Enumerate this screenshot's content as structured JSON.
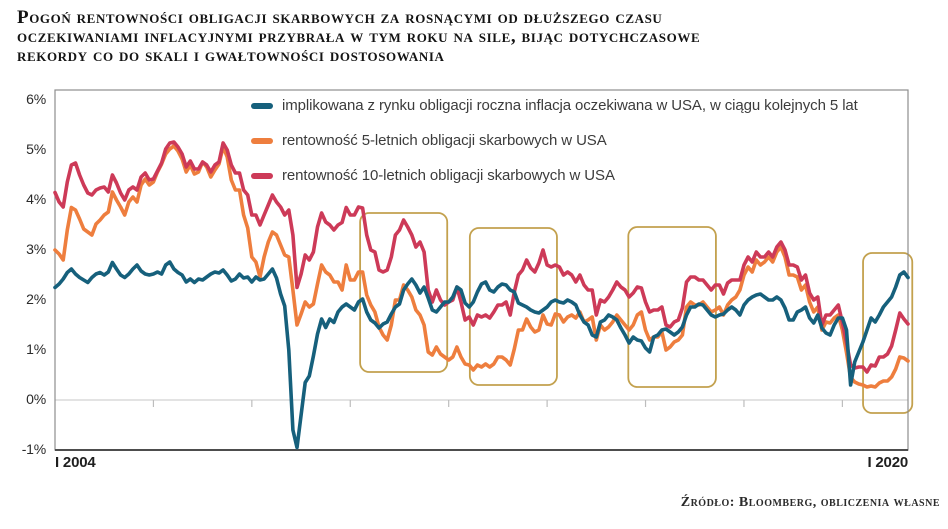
{
  "title_lines": [
    "Pogoń rentowności obligacji skarbowych za rosnącymi od dłuższego czasu",
    "oczekiwaniami inflacyjnymi przybrała w tym roku na sile, bijąc dotychczasowe",
    "rekordy co do skali i gwałtowności dostosowania"
  ],
  "source": "Źródło: Bloomberg, obliczenia własne",
  "chart_data": {
    "type": "line",
    "x_unit": "monthly",
    "x_start": "2004-01",
    "x_end": "2021-05",
    "ylim": [
      -1,
      6.2
    ],
    "grid": "zero-line-only",
    "legend_position": "top-inside",
    "yticks": [
      {
        "label": "6%",
        "value": 6
      },
      {
        "label": "5%",
        "value": 5
      },
      {
        "label": "4%",
        "value": 4
      },
      {
        "label": "3%",
        "value": 3
      },
      {
        "label": "2%",
        "value": 2
      },
      {
        "label": "1%",
        "value": 1
      },
      {
        "label": "0%",
        "value": 0
      },
      {
        "label": "-1%",
        "value": -1
      }
    ],
    "xtick_labels": [
      "I 2004",
      "I 2020"
    ],
    "xtick_minor_years": [
      2006,
      2008,
      2010,
      2012,
      2014,
      2016,
      2018,
      2020
    ],
    "highlight_color": "#c3a14e",
    "highlight_boxes": [
      {
        "x_from": 2010.2,
        "x_to": 2011.97,
        "y_top": 3.74,
        "y_bottom": 0.56
      },
      {
        "x_from": 2012.43,
        "x_to": 2014.2,
        "y_top": 3.44,
        "y_bottom": 0.3
      },
      {
        "x_from": 2015.65,
        "x_to": 2017.43,
        "y_top": 3.46,
        "y_bottom": 0.26
      },
      {
        "x_from": 2020.42,
        "x_to": 2021.42,
        "y_top": 2.94,
        "y_bottom": -0.26
      }
    ],
    "series": [
      {
        "name": "implikowana z rynku obligacji roczna inflacja oczekiwana w USA, w ciągu kolejnych 5 lat",
        "color": "#16607c",
        "values": [
          2.25,
          2.32,
          2.42,
          2.55,
          2.62,
          2.52,
          2.45,
          2.4,
          2.35,
          2.45,
          2.52,
          2.55,
          2.5,
          2.56,
          2.75,
          2.62,
          2.5,
          2.45,
          2.52,
          2.62,
          2.7,
          2.58,
          2.52,
          2.5,
          2.52,
          2.56,
          2.52,
          2.7,
          2.76,
          2.62,
          2.55,
          2.5,
          2.36,
          2.42,
          2.35,
          2.42,
          2.4,
          2.46,
          2.52,
          2.56,
          2.54,
          2.6,
          2.5,
          2.38,
          2.42,
          2.52,
          2.44,
          2.46,
          2.36,
          2.46,
          2.4,
          2.42,
          2.52,
          2.62,
          2.44,
          2.12,
          1.88,
          1.0,
          -0.6,
          -0.95,
          -0.3,
          0.35,
          0.48,
          0.88,
          1.32,
          1.62,
          1.45,
          1.62,
          1.55,
          1.76,
          1.86,
          1.92,
          1.86,
          1.8,
          1.96,
          2.02,
          1.76,
          1.6,
          1.54,
          1.44,
          1.52,
          1.56,
          1.72,
          1.86,
          1.92,
          2.2,
          2.32,
          2.42,
          2.3,
          2.14,
          2.26,
          2.04,
          1.8,
          1.76,
          1.86,
          1.96,
          1.96,
          2.06,
          2.26,
          2.2,
          1.94,
          1.86,
          1.96,
          2.16,
          2.32,
          2.36,
          2.2,
          2.16,
          2.26,
          2.32,
          2.3,
          2.2,
          2.16,
          1.94,
          1.9,
          1.86,
          1.8,
          1.76,
          1.74,
          1.8,
          1.86,
          1.96,
          2.0,
          1.96,
          1.94,
          2.0,
          1.96,
          1.9,
          1.7,
          1.56,
          1.5,
          1.3,
          1.26,
          1.56,
          1.6,
          1.7,
          1.66,
          1.6,
          1.44,
          1.3,
          1.14,
          1.26,
          1.2,
          1.18,
          1.04,
          0.96,
          1.26,
          1.3,
          1.4,
          1.42,
          1.36,
          1.3,
          1.36,
          1.46,
          1.7,
          1.86,
          1.86,
          1.92,
          1.9,
          1.8,
          1.7,
          1.66,
          1.7,
          1.72,
          1.8,
          1.86,
          1.8,
          1.7,
          1.9,
          2.0,
          2.06,
          2.1,
          2.12,
          2.06,
          2.0,
          2.0,
          2.06,
          2.0,
          1.84,
          1.6,
          1.6,
          1.76,
          1.8,
          1.86,
          1.64,
          1.54,
          1.7,
          1.44,
          1.34,
          1.3,
          1.5,
          1.64,
          1.64,
          1.4,
          0.3,
          0.76,
          0.96,
          1.16,
          1.4,
          1.64,
          1.56,
          1.7,
          1.86,
          1.96,
          2.06,
          2.26,
          2.5,
          2.56,
          2.45
        ]
      },
      {
        "name": "rentowność 5-letnich obligacji skarbowych w USA",
        "color": "#ee7e3e",
        "values": [
          3.0,
          2.92,
          2.8,
          3.4,
          3.85,
          3.8,
          3.62,
          3.42,
          3.36,
          3.3,
          3.52,
          3.6,
          3.7,
          3.76,
          4.16,
          4.0,
          3.86,
          3.7,
          3.96,
          4.06,
          3.96,
          4.3,
          4.42,
          4.3,
          4.36,
          4.56,
          4.72,
          4.92,
          5.02,
          5.08,
          4.98,
          4.82,
          4.56,
          4.7,
          4.52,
          4.56,
          4.76,
          4.66,
          4.46,
          4.6,
          4.72,
          5.06,
          4.86,
          4.4,
          4.2,
          4.2,
          3.7,
          3.44,
          2.86,
          2.76,
          2.46,
          2.86,
          3.16,
          3.36,
          3.3,
          3.1,
          2.9,
          2.86,
          2.2,
          1.5,
          1.72,
          1.96,
          1.86,
          1.92,
          2.32,
          2.7,
          2.56,
          2.5,
          2.36,
          2.36,
          2.2,
          2.7,
          2.4,
          2.4,
          2.56,
          2.56,
          2.1,
          1.9,
          1.76,
          1.46,
          1.3,
          1.2,
          1.5,
          2.0,
          2.0,
          2.3,
          2.2,
          2.06,
          1.8,
          1.7,
          1.5,
          0.96,
          0.9,
          1.06,
          0.92,
          0.86,
          0.8,
          0.86,
          1.06,
          0.86,
          0.72,
          0.7,
          0.6,
          0.7,
          0.66,
          0.72,
          0.66,
          0.72,
          0.86,
          0.86,
          0.8,
          0.7,
          1.02,
          1.4,
          1.4,
          1.62,
          1.46,
          1.36,
          1.4,
          1.7,
          1.52,
          1.5,
          1.72,
          1.7,
          1.56,
          1.66,
          1.7,
          1.64,
          1.76,
          1.56,
          1.6,
          1.66,
          1.2,
          1.5,
          1.4,
          1.46,
          1.56,
          1.7,
          1.6,
          1.5,
          1.4,
          1.5,
          1.7,
          1.76,
          1.4,
          1.2,
          1.26,
          1.26,
          1.36,
          1.0,
          1.06,
          1.16,
          1.2,
          1.3,
          1.86,
          1.96,
          1.9,
          1.9,
          1.96,
          1.86,
          1.76,
          1.8,
          1.86,
          1.7,
          1.9,
          2.0,
          2.06,
          2.2,
          2.5,
          2.66,
          2.56,
          2.8,
          2.7,
          2.76,
          2.86,
          2.76,
          2.96,
          3.06,
          2.86,
          2.5,
          2.5,
          2.46,
          2.2,
          2.3,
          1.96,
          1.76,
          1.86,
          1.4,
          1.56,
          1.54,
          1.64,
          1.7,
          1.4,
          0.95,
          0.45,
          0.36,
          0.32,
          0.3,
          0.26,
          0.28,
          0.26,
          0.34,
          0.38,
          0.38,
          0.46,
          0.62,
          0.86,
          0.84,
          0.78
        ]
      },
      {
        "name": "rentowność 10-letnich obligacji skarbowych w USA",
        "color": "#cd3a58",
        "values": [
          4.15,
          3.96,
          3.86,
          4.36,
          4.7,
          4.74,
          4.5,
          4.3,
          4.14,
          4.1,
          4.2,
          4.24,
          4.26,
          4.16,
          4.5,
          4.34,
          4.14,
          4.0,
          4.2,
          4.26,
          4.2,
          4.46,
          4.54,
          4.4,
          4.42,
          4.58,
          4.74,
          5.02,
          5.14,
          5.16,
          5.06,
          4.92,
          4.66,
          4.78,
          4.62,
          4.62,
          4.76,
          4.7,
          4.56,
          4.7,
          4.76,
          5.14,
          5.0,
          4.7,
          4.54,
          4.54,
          4.2,
          4.1,
          3.7,
          3.7,
          3.5,
          3.7,
          3.9,
          4.1,
          3.96,
          3.86,
          3.7,
          3.8,
          3.3,
          2.25,
          2.52,
          2.9,
          2.8,
          2.96,
          3.46,
          3.74,
          3.56,
          3.5,
          3.4,
          3.5,
          3.55,
          3.85,
          3.7,
          3.7,
          3.86,
          3.84,
          3.3,
          3.0,
          2.96,
          2.6,
          2.56,
          2.6,
          2.86,
          3.3,
          3.4,
          3.6,
          3.46,
          3.3,
          3.06,
          3.16,
          2.96,
          2.2,
          1.96,
          2.2,
          2.0,
          1.9,
          1.96,
          2.0,
          2.26,
          1.96,
          1.6,
          1.66,
          1.5,
          1.7,
          1.66,
          1.7,
          1.64,
          1.76,
          1.9,
          1.9,
          1.96,
          1.7,
          2.16,
          2.5,
          2.6,
          2.8,
          2.64,
          2.56,
          2.74,
          3.0,
          2.7,
          2.66,
          2.7,
          2.66,
          2.5,
          2.56,
          2.5,
          2.36,
          2.5,
          2.3,
          2.2,
          2.2,
          1.7,
          2.0,
          1.96,
          2.06,
          2.2,
          2.36,
          2.26,
          2.2,
          2.06,
          2.14,
          2.26,
          2.24,
          1.96,
          1.76,
          1.8,
          1.8,
          1.86,
          1.5,
          1.46,
          1.56,
          1.6,
          1.84,
          2.36,
          2.46,
          2.46,
          2.4,
          2.4,
          2.3,
          2.2,
          2.3,
          2.3,
          2.12,
          2.34,
          2.4,
          2.4,
          2.4,
          2.7,
          2.86,
          2.76,
          2.96,
          2.86,
          2.86,
          2.96,
          2.86,
          3.06,
          3.16,
          3.0,
          2.7,
          2.7,
          2.66,
          2.4,
          2.5,
          2.14,
          2.0,
          2.06,
          1.5,
          1.7,
          1.7,
          1.8,
          1.9,
          1.55,
          1.15,
          0.7,
          0.64,
          0.66,
          0.66,
          0.56,
          0.7,
          0.68,
          0.86,
          0.86,
          0.92,
          1.08,
          1.4,
          1.74,
          1.62,
          1.52
        ]
      }
    ]
  }
}
